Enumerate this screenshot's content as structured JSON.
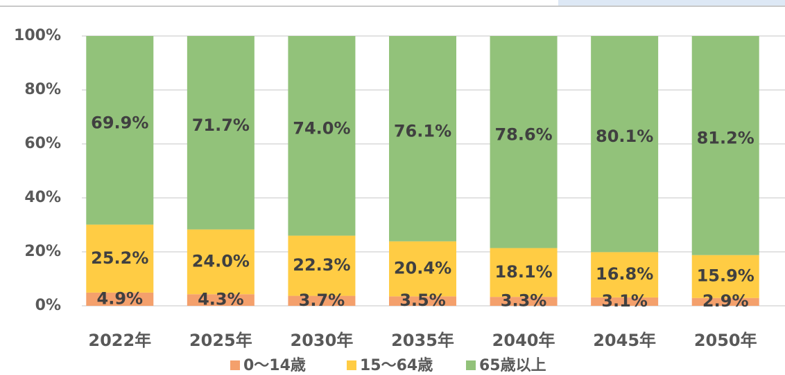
{
  "chart_data": {
    "type": "stacked_bar",
    "categories": [
      "2022年",
      "2025年",
      "2030年",
      "2035年",
      "2040年",
      "2045年",
      "2050年"
    ],
    "series": [
      {
        "name": "0～14歳",
        "color": "#f4a06c",
        "values": [
          4.9,
          4.3,
          3.7,
          3.5,
          3.3,
          3.1,
          2.9
        ],
        "value_labels": [
          "4.9%",
          "4.3%",
          "3.7%",
          "3.5%",
          "3.3%",
          "3.1%",
          "2.9%"
        ]
      },
      {
        "name": "15～64歳",
        "color": "#ffcc44",
        "values": [
          25.2,
          24.0,
          22.3,
          20.4,
          18.1,
          16.8,
          15.9
        ],
        "value_labels": [
          "25.2%",
          "24.0%",
          "22.3%",
          "20.4%",
          "18.1%",
          "16.8%",
          "15.9%"
        ]
      },
      {
        "name": "65歳以上",
        "color": "#92c27a",
        "values": [
          69.9,
          71.7,
          74.0,
          76.1,
          78.6,
          80.1,
          81.2
        ],
        "value_labels": [
          "69.9%",
          "71.7%",
          "74.0%",
          "76.1%",
          "78.6%",
          "80.1%",
          "81.2%"
        ]
      }
    ],
    "ylim": [
      0,
      100
    ],
    "yticks": [
      {
        "value": 0,
        "label": "0%"
      },
      {
        "value": 20,
        "label": "20%"
      },
      {
        "value": 40,
        "label": "40%"
      },
      {
        "value": 60,
        "label": "60%"
      },
      {
        "value": 80,
        "label": "80%"
      },
      {
        "value": 100,
        "label": "100%"
      }
    ],
    "grid": true,
    "legend": "bottom"
  }
}
